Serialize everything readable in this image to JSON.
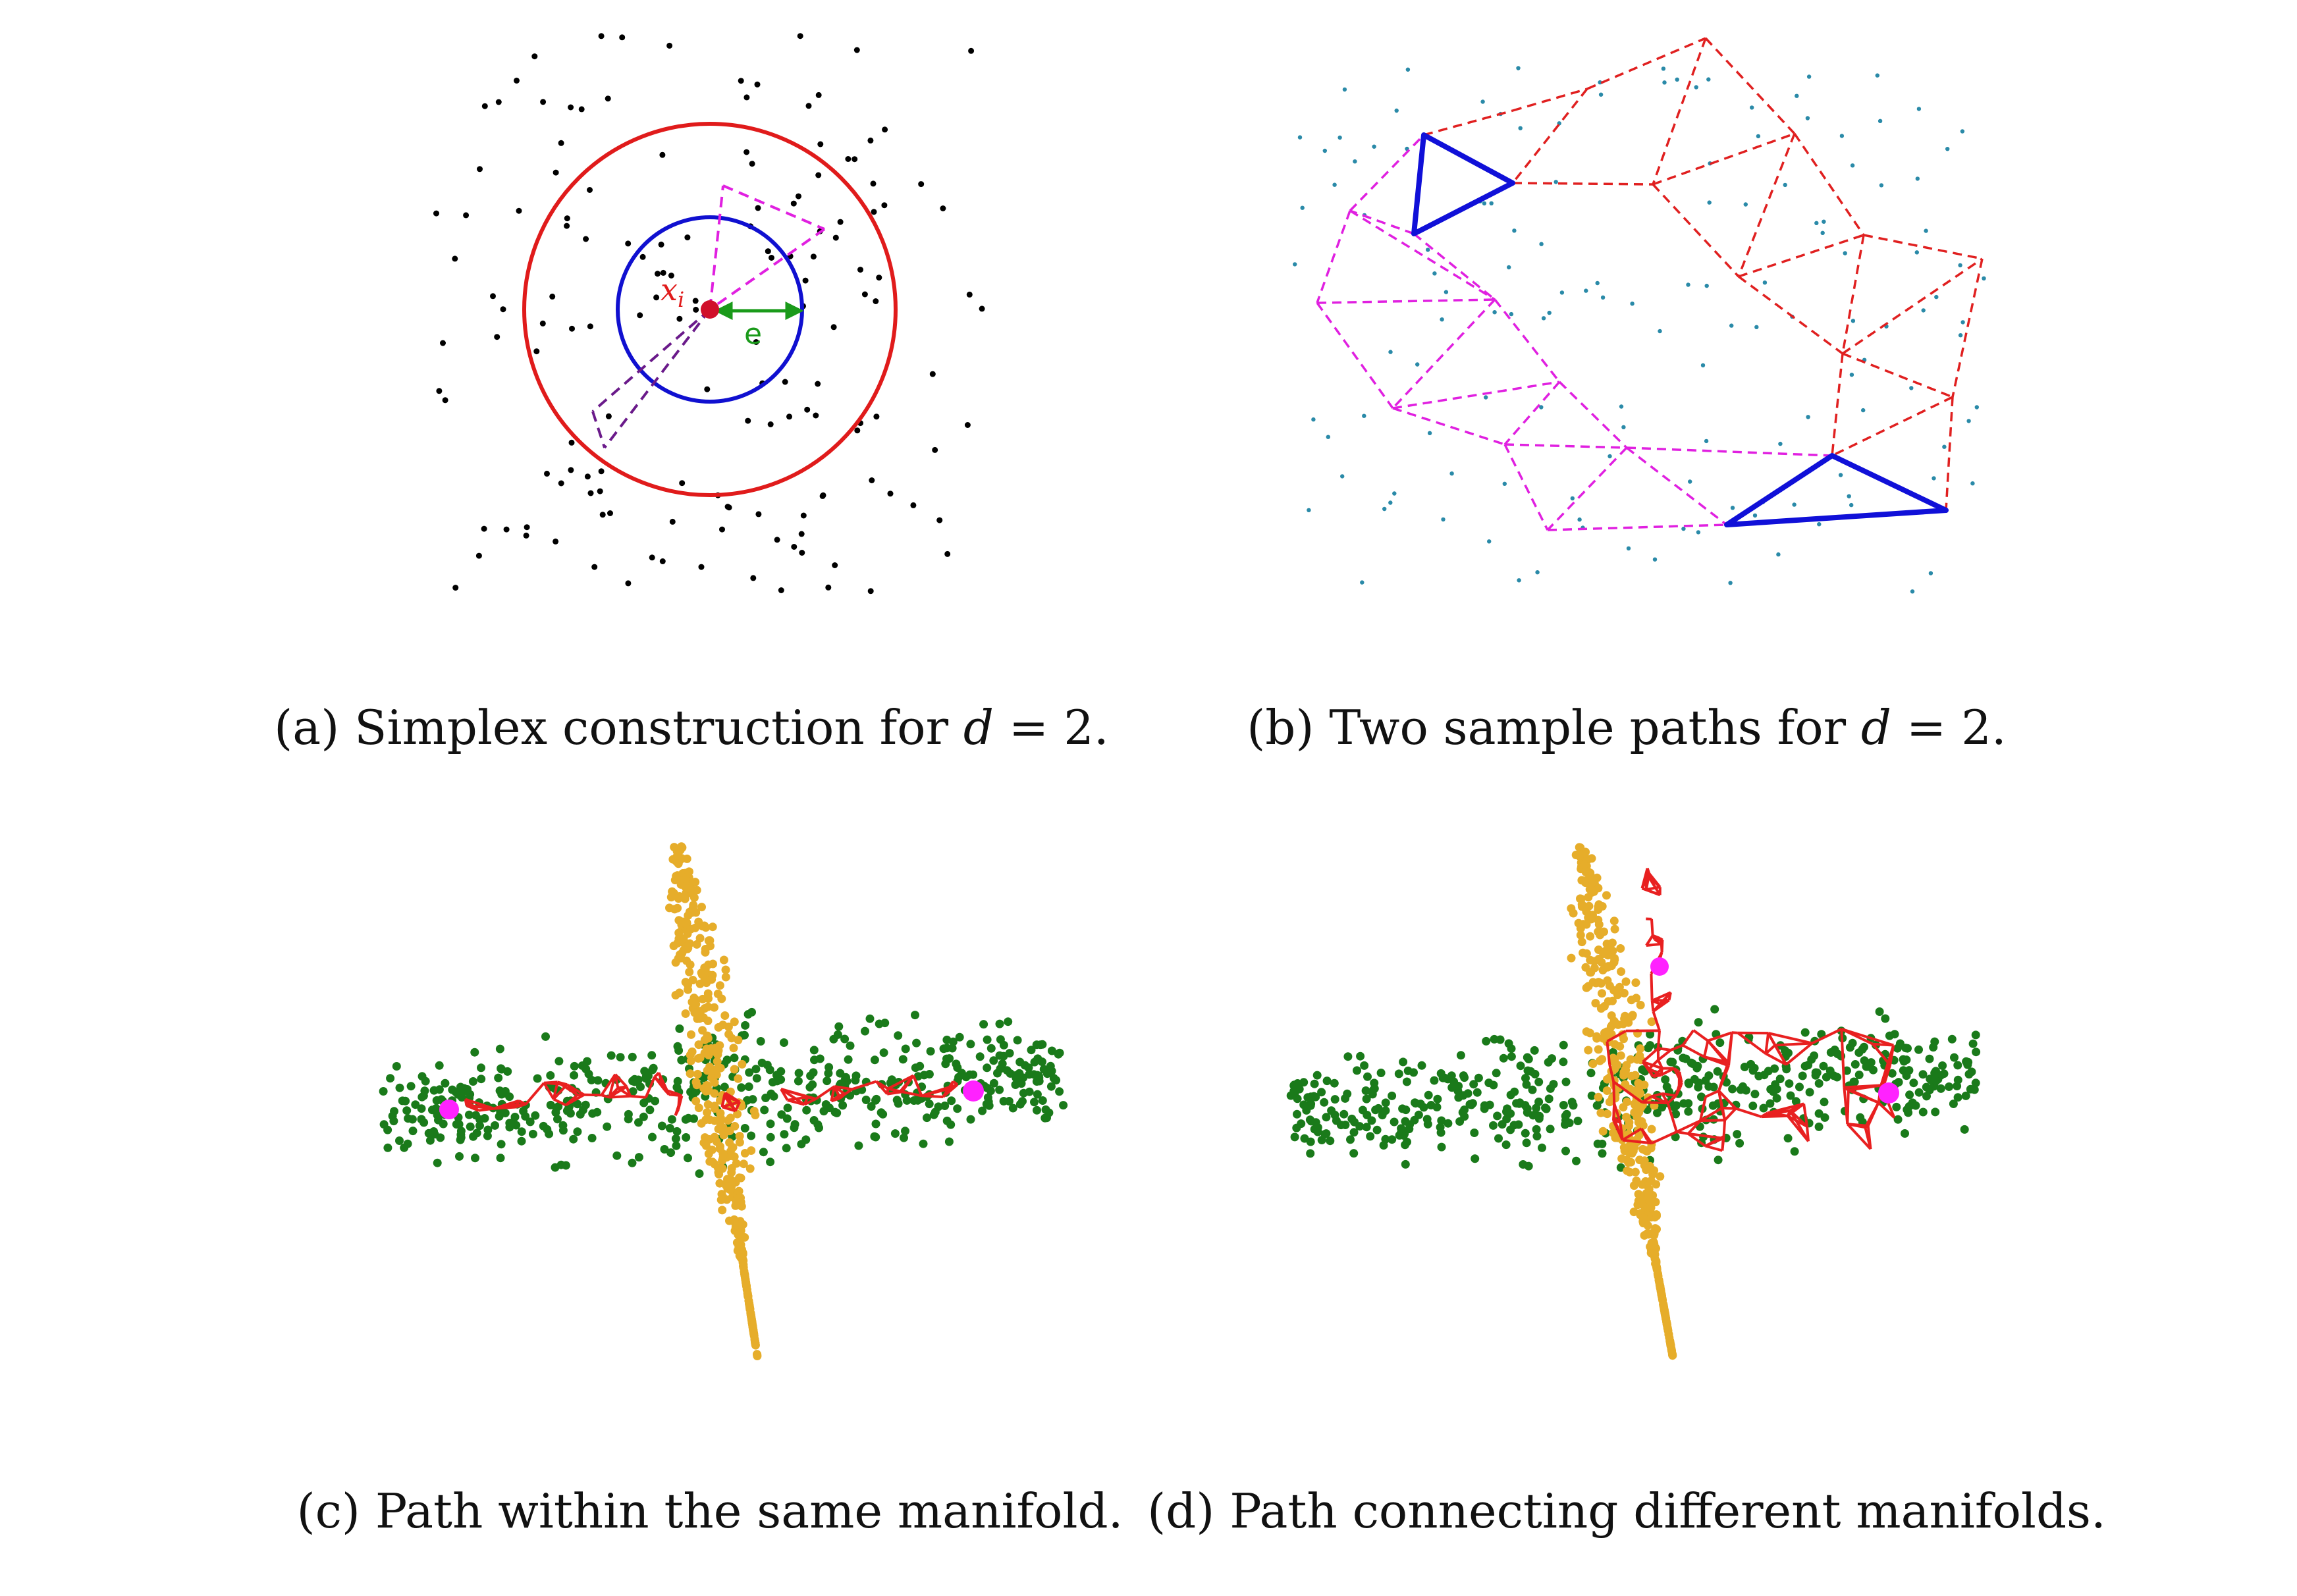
{
  "panels": {
    "a": {
      "caption_prefix": "(a) Simplex construction for ",
      "caption_math": "d",
      "caption_suffix": " = 2.",
      "point_label": "x",
      "point_label_sub": "i",
      "radius_label": "e"
    },
    "b": {
      "caption_prefix": "(b) Two sample paths for ",
      "caption_math": "d",
      "caption_suffix": " = 2."
    },
    "c": {
      "caption": "(c) Path within the same manifold."
    },
    "d": {
      "caption": "(d) Path connecting different manifolds."
    }
  },
  "colors": {
    "black_points": "#000000",
    "outer_circle": "#e01b1b",
    "inner_circle": "#1010d0",
    "magenta": "#e020e0",
    "purple": "#6a1a8a",
    "green_arrow": "#1a9a1a",
    "teal_points": "#2a8aa8",
    "red_dashed": "#e02020",
    "blue_triangle": "#1010d8",
    "green_points": "#1a7a1a",
    "orange_points": "#e6ad2a",
    "red_path": "#e82020",
    "endpoint": "#ff22ff"
  }
}
